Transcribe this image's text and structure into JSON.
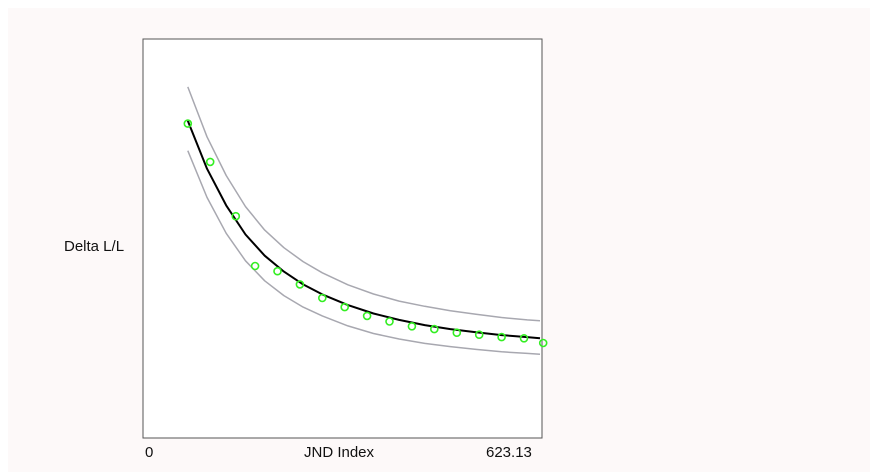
{
  "chart_data": {
    "type": "scatter",
    "title": "",
    "xlabel": "JND Index",
    "ylabel": "Delta L/L",
    "xlim": [
      0,
      623.13
    ],
    "ylim": [
      0,
      1
    ],
    "x_tick_labels": [
      "0",
      "623.13"
    ],
    "grid": false,
    "legend": "none",
    "colors": {
      "points": "#33ee22",
      "fit": "#000000",
      "bounds": "#a8a8b0",
      "frame": "#555555"
    },
    "series": [
      {
        "kind": "points",
        "x": [
          70,
          105,
          145,
          175,
          210,
          245,
          280,
          315,
          350,
          385,
          420,
          455,
          490,
          525,
          560,
          595,
          625
        ],
        "y": [
          0.788,
          0.692,
          0.556,
          0.431,
          0.418,
          0.385,
          0.351,
          0.328,
          0.306,
          0.292,
          0.28,
          0.273,
          0.264,
          0.259,
          0.253,
          0.25,
          0.238
        ]
      },
      {
        "kind": "fit",
        "x": [
          70,
          100,
          130,
          160,
          190,
          220,
          250,
          280,
          320,
          360,
          400,
          440,
          480,
          520,
          560,
          600,
          620
        ],
        "y": [
          0.795,
          0.675,
          0.583,
          0.51,
          0.457,
          0.417,
          0.385,
          0.36,
          0.333,
          0.312,
          0.296,
          0.283,
          0.273,
          0.265,
          0.258,
          0.253,
          0.25
        ]
      },
      {
        "kind": "upper-bound",
        "x": [
          70,
          100,
          130,
          160,
          190,
          220,
          250,
          280,
          320,
          360,
          400,
          440,
          480,
          520,
          560,
          600,
          620
        ],
        "y": [
          0.88,
          0.755,
          0.658,
          0.58,
          0.521,
          0.477,
          0.442,
          0.414,
          0.384,
          0.361,
          0.343,
          0.33,
          0.319,
          0.31,
          0.302,
          0.296,
          0.294
        ]
      },
      {
        "kind": "lower-bound",
        "x": [
          70,
          100,
          130,
          160,
          190,
          220,
          250,
          280,
          320,
          360,
          400,
          440,
          480,
          520,
          560,
          600,
          620
        ],
        "y": [
          0.72,
          0.603,
          0.513,
          0.444,
          0.394,
          0.357,
          0.328,
          0.306,
          0.281,
          0.262,
          0.248,
          0.237,
          0.229,
          0.222,
          0.216,
          0.212,
          0.21
        ]
      }
    ]
  }
}
